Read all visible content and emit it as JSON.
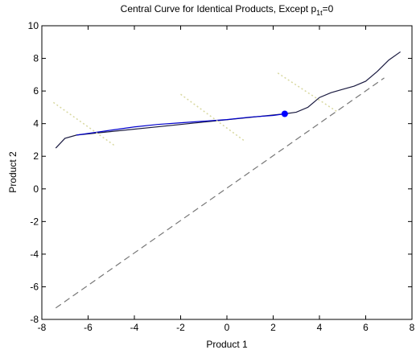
{
  "chart_data": {
    "type": "line",
    "title": {
      "text": "Central Curve for Identical Products, Except p",
      "subscript": "1t",
      "tail": "=0"
    },
    "x_label": "Product 1",
    "y_label": "Product 2",
    "xlim": [
      -8,
      8
    ],
    "ylim": [
      -8,
      10
    ],
    "xticks": [
      -8,
      -6,
      -4,
      -2,
      0,
      2,
      4,
      6,
      8
    ],
    "yticks": [
      -8,
      -6,
      -4,
      -2,
      0,
      2,
      4,
      6,
      8,
      10
    ],
    "series": [
      {
        "color": "#1a1a40",
        "style": "solid",
        "x": [
          -7.4,
          -7.0,
          -6.5,
          2.5,
          3.0,
          3.5,
          4.0,
          4.5,
          5.0,
          5.5,
          6.0,
          6.5,
          7.0,
          7.5
        ],
        "values": [
          2.5,
          3.1,
          3.3,
          4.6,
          4.7,
          5.0,
          5.6,
          5.9,
          6.1,
          6.3,
          6.6,
          7.2,
          7.9,
          8.4
        ]
      },
      {
        "color": "#0000cc",
        "style": "solid",
        "x": [
          -6.5,
          -6.0,
          -5.0,
          -4.0,
          -3.0,
          -2.0,
          -1.0,
          0.0,
          1.0,
          2.0,
          2.5
        ],
        "values": [
          3.3,
          3.4,
          3.6,
          3.8,
          3.95,
          4.05,
          4.15,
          4.25,
          4.4,
          4.5,
          4.6
        ]
      },
      {
        "color": "#777777",
        "style": "dashed",
        "x": [
          -7.4,
          6.8
        ],
        "values": [
          -7.3,
          6.8
        ]
      },
      {
        "color": "#d8d8a0",
        "style": "dotted",
        "x": [
          -7.5,
          -4.8
        ],
        "values": [
          5.3,
          2.6
        ]
      },
      {
        "color": "#d8d8a0",
        "style": "dotted",
        "x": [
          -2.0,
          0.8
        ],
        "values": [
          5.8,
          2.9
        ]
      },
      {
        "color": "#d8d8a0",
        "style": "dotted",
        "x": [
          2.2,
          4.8
        ],
        "values": [
          7.1,
          4.7
        ]
      },
      {
        "color": "#0000ff",
        "style": "marker",
        "x": [
          2.5
        ],
        "values": [
          4.6
        ]
      }
    ]
  }
}
